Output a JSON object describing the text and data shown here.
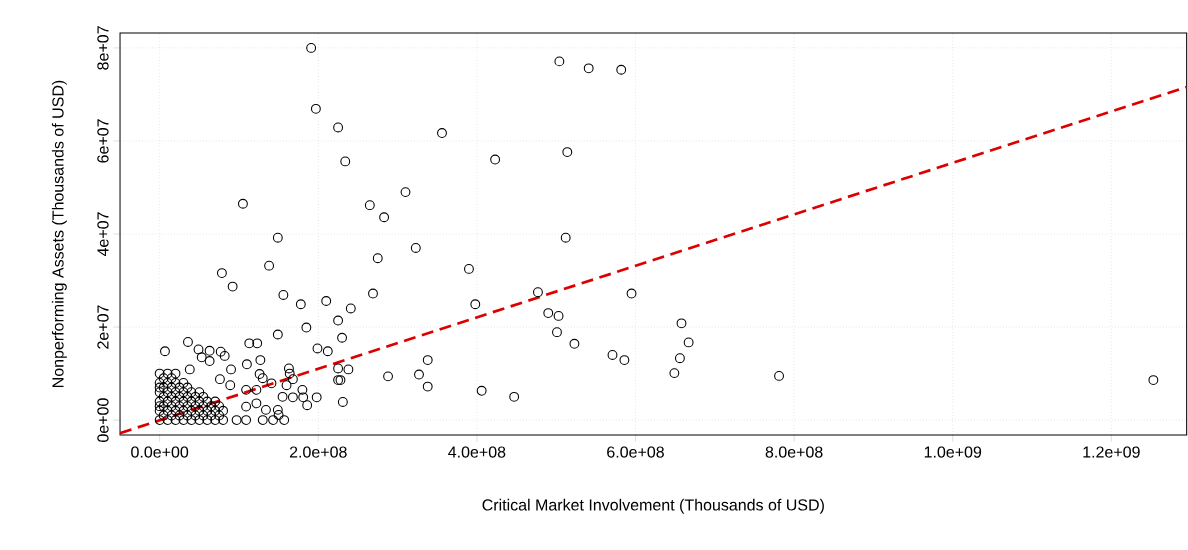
{
  "chart_data": {
    "type": "scatter",
    "xlabel": "Critical Market Involvement (Thousands of USD)",
    "ylabel": "Nonperforming Assets (Thousands of USD)",
    "xlim": [
      -50000000.0,
      1295000000.0
    ],
    "ylim": [
      -3200000.0,
      83200000.0
    ],
    "xticks": [
      {
        "value": 0,
        "label": "0.0e+00"
      },
      {
        "value": 200000000.0,
        "label": "2.0e+08"
      },
      {
        "value": 400000000.0,
        "label": "4.0e+08"
      },
      {
        "value": 600000000.0,
        "label": "6.0e+08"
      },
      {
        "value": 800000000.0,
        "label": "8.0e+08"
      },
      {
        "value": 1000000000.0,
        "label": "1.0e+09"
      },
      {
        "value": 1200000000.0,
        "label": "1.2e+09"
      }
    ],
    "yticks": [
      {
        "value": 0,
        "label": "0e+00"
      },
      {
        "value": 20000000.0,
        "label": "2e+07"
      },
      {
        "value": 40000000.0,
        "label": "4e+07"
      },
      {
        "value": 60000000.0,
        "label": "6e+07"
      },
      {
        "value": 80000000.0,
        "label": "8e+07"
      }
    ],
    "grid": true,
    "marker": "circle",
    "series": [
      {
        "color": "#000000",
        "x": [
          191000000.0,
          197000000.0,
          225000000.0,
          356000000.0,
          234000000.0,
          423000000.0,
          105000000.0,
          310000000.0,
          265000000.0,
          283000000.0,
          149000000.0,
          323000000.0,
          275000000.0,
          138000000.0,
          390000000.0,
          78500000.0,
          92000000.0,
          504000000.0,
          541000000.0,
          582000000.0,
          514000000.0,
          512000000.0,
          269000000.0,
          398000000.0,
          477000000.0,
          595000000.0,
          490000000.0,
          503000000.0,
          501000000.0,
          523000000.0,
          571000000.0,
          586000000.0,
          658000000.0,
          667000000.0,
          656000000.0,
          649000000.0,
          338000000.0,
          288000000.0,
          327000000.0,
          338000000.0,
          406000000.0,
          447000000.0,
          781000000.0,
          1253000000.0,
          156000000.0,
          178000000.0,
          210000000.0,
          241000000.0,
          225000000.0,
          149000000.0,
          185000000.0,
          230000000.0,
          199000000.0,
          212000000.0,
          35700000.0,
          6700000.0,
          49000000.0,
          63000000.0,
          77000000.0,
          53000000.0,
          63000000.0,
          82000000.0,
          113000000.0,
          123000000.0,
          127000000.0,
          110000000.0,
          90000000.0,
          38000000.0,
          163000000.0,
          164000000.0,
          126000000.0,
          130000000.0,
          141000000.0,
          168000000.0,
          76000000.0,
          89000000.0,
          160000000.0,
          198000000.0,
          180000000.0,
          181000000.0,
          168000000.0,
          155000000.0,
          122000000.0,
          109000000.0,
          186000000.0,
          231000000.0,
          225000000.0,
          228000000.0,
          238000000.0,
          225000000.0,
          149000000.0,
          150000000.0,
          157000000.0,
          143000000.0,
          130000000.0,
          97000000.0,
          109000000.0,
          134000000.0,
          122000000.0,
          109000000.0,
          0,
          0,
          0,
          0,
          0,
          0,
          0,
          0,
          5000000.0,
          5000000.0,
          5000000.0,
          5000000.0,
          5000000.0,
          10000000.0,
          10000000.0,
          10000000.0,
          10000000.0,
          10000000.0,
          10000000.0,
          15000000.0,
          15000000.0,
          15000000.0,
          15000000.0,
          15000000.0,
          20000000.0,
          20000000.0,
          20000000.0,
          20000000.0,
          20000000.0,
          20000000.0,
          25000000.0,
          25000000.0,
          25000000.0,
          25000000.0,
          30000000.0,
          30000000.0,
          30000000.0,
          30000000.0,
          30000000.0,
          35000000.0,
          35000000.0,
          35000000.0,
          35000000.0,
          40000000.0,
          40000000.0,
          40000000.0,
          40000000.0,
          45000000.0,
          45000000.0,
          45000000.0,
          50000000.0,
          50000000.0,
          50000000.0,
          50000000.0,
          55000000.0,
          55000000.0,
          55000000.0,
          60000000.0,
          60000000.0,
          60000000.0,
          65000000.0,
          65000000.0,
          70000000.0,
          70000000.0,
          70000000.0,
          75000000.0,
          75000000.0,
          80000000.0,
          80000000.0
        ],
        "values": [
          80000000.0,
          66900000.0,
          62900000.0,
          61700000.0,
          55600000.0,
          56000000.0,
          46500000.0,
          49000000.0,
          46200000.0,
          43600000.0,
          39200000.0,
          37000000.0,
          34800000.0,
          33200000.0,
          32500000.0,
          31600000.0,
          28700000.0,
          77100000.0,
          75600000.0,
          75300000.0,
          57600000.0,
          39200000.0,
          27200000.0,
          24900000.0,
          27500000.0,
          27200000.0,
          23000000.0,
          22400000.0,
          18900000.0,
          16400000.0,
          14000000.0,
          12900000.0,
          20800000.0,
          16700000.0,
          13300000.0,
          10100000.0,
          12900000.0,
          9400000.0,
          9800000.0,
          7200000.0,
          6300000.0,
          5000000.0,
          9500000.0,
          8600000.0,
          26900000.0,
          24900000.0,
          25600000.0,
          24000000.0,
          21400000.0,
          18400000.0,
          19900000.0,
          17700000.0,
          15400000.0,
          14800000.0,
          16800000.0,
          14800000.0,
          15200000.0,
          14900000.0,
          14700000.0,
          13500000.0,
          12700000.0,
          13800000.0,
          16500000.0,
          16500000.0,
          12900000.0,
          12000000.0,
          10900000.0,
          10900000.0,
          11100000.0,
          10000000.0,
          9900000.0,
          9000000.0,
          7900000.0,
          8800000.0,
          8800000.0,
          7500000.0,
          7500000.0,
          4900000.0,
          6500000.0,
          4900000.0,
          4900000.0,
          5000000.0,
          6500000.0,
          6500000.0,
          3200000.0,
          3900000.0,
          8600000.0,
          8600000.0,
          10900000.0,
          11100000.0,
          2200000.0,
          1100000.0,
          0,
          0,
          0,
          0,
          0,
          2200000.0,
          3600000.0,
          2900000.0,
          0,
          2000000.0,
          4000000.0,
          6000000.0,
          8000000.0,
          10000000.0,
          3000000.0,
          7000000.0,
          1000000.0,
          5000000.0,
          9000000.0,
          3000000.0,
          7000000.0,
          0,
          2000000.0,
          4000000.0,
          6000000.0,
          8000000.0,
          10000000.0,
          1000000.0,
          3000000.0,
          5000000.0,
          7000000.0,
          9000000.0,
          0,
          2000000.0,
          4000000.0,
          6000000.0,
          8000000.0,
          10000000.0,
          1000000.0,
          3000000.0,
          5000000.0,
          7000000.0,
          0,
          2000000.0,
          4000000.0,
          6000000.0,
          8000000.0,
          1000000.0,
          3000000.0,
          5000000.0,
          7000000.0,
          0,
          2000000.0,
          4000000.0,
          6000000.0,
          1000000.0,
          3000000.0,
          5000000.0,
          0,
          2000000.0,
          4000000.0,
          6000000.0,
          1000000.0,
          3000000.0,
          5000000.0,
          0,
          2000000.0,
          4000000.0,
          1000000.0,
          3000000.0,
          0,
          2000000.0,
          4000000.0,
          1000000.0,
          3000000.0,
          0,
          2000000.0
        ]
      },
      {
        "type": "line",
        "color": "#dd0000",
        "line_style": "dashed",
        "marker": "none",
        "x": [
          -50000000.0,
          1295000000.0
        ],
        "values": [
          -2800000.0,
          71600000.0
        ]
      }
    ]
  }
}
